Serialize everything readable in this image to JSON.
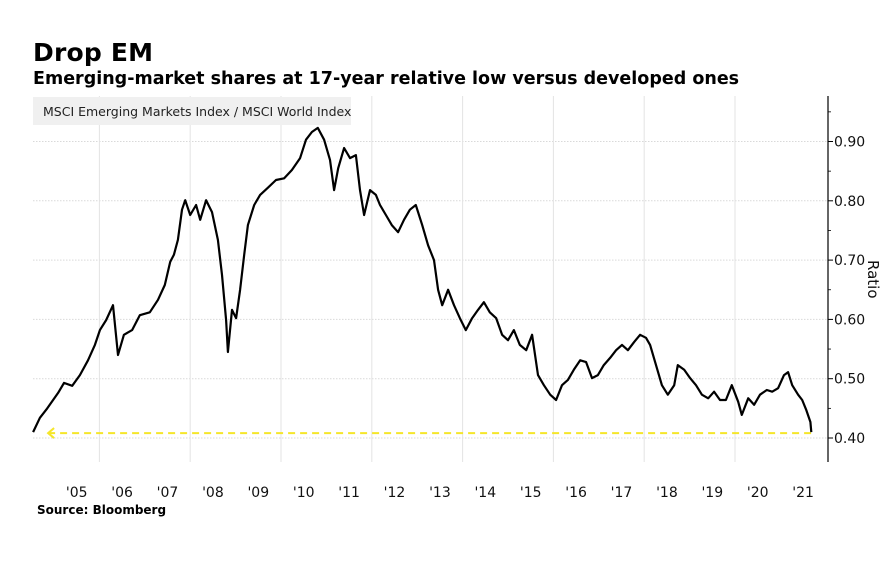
{
  "chart_data": {
    "type": "line",
    "title": "Drop EM",
    "subtitle": "Emerging-market shares at 17-year relative low versus developed ones",
    "source": "Source: Bloomberg",
    "xlabel": "",
    "ylabel": "Ratio",
    "ylim": [
      0.36,
      0.98
    ],
    "xlim": [
      2004.55,
      2021.95
    ],
    "grid": true,
    "legend_position": "top-left",
    "y_ticks": [
      0.4,
      0.5,
      0.6,
      0.7,
      0.8,
      0.9
    ],
    "y_tick_labels": [
      "0.40",
      "0.50",
      "0.60",
      "0.70",
      "0.80",
      "0.90"
    ],
    "x_ticks": [
      2005.5,
      2006.5,
      2007.5,
      2008.5,
      2009.5,
      2010.5,
      2011.5,
      2012.5,
      2013.5,
      2014.5,
      2015.5,
      2016.5,
      2017.5,
      2018.5,
      2019.5,
      2020.5,
      2021.5
    ],
    "x_tick_labels": [
      "'05",
      "'06",
      "'07",
      "'08",
      "'09",
      "'10",
      "'11",
      "'12",
      "'13",
      "'14",
      "'15",
      "'16",
      "'17",
      "'18",
      "'19",
      "'20",
      "'21"
    ],
    "x_gridlines": [
      2006,
      2008,
      2010,
      2012,
      2014,
      2016,
      2018,
      2020
    ],
    "series": [
      {
        "name": "MSCI Emerging Markets Index / MSCI World Index",
        "color": "#000000",
        "x": [
          2004.54,
          2004.69,
          2004.85,
          2005.09,
          2005.22,
          2005.4,
          2005.57,
          2005.75,
          2005.9,
          2006.01,
          2006.15,
          2006.3,
          2006.41,
          2006.54,
          2006.72,
          2006.89,
          2007.11,
          2007.29,
          2007.44,
          2007.56,
          2007.64,
          2007.73,
          2007.82,
          2007.89,
          2008.0,
          2008.13,
          2008.22,
          2008.35,
          2008.48,
          2008.61,
          2008.7,
          2008.79,
          2008.83,
          2008.92,
          2009.01,
          2009.1,
          2009.19,
          2009.27,
          2009.41,
          2009.54,
          2009.71,
          2009.89,
          2010.07,
          2010.24,
          2010.42,
          2010.55,
          2010.68,
          2010.81,
          2010.95,
          2011.08,
          2011.17,
          2011.26,
          2011.39,
          2011.52,
          2011.65,
          2011.74,
          2011.83,
          2011.96,
          2012.09,
          2012.18,
          2012.31,
          2012.44,
          2012.58,
          2012.71,
          2012.84,
          2012.97,
          2013.11,
          2013.24,
          2013.37,
          2013.46,
          2013.55,
          2013.68,
          2013.81,
          2013.94,
          2014.07,
          2014.21,
          2014.34,
          2014.47,
          2014.6,
          2014.74,
          2014.87,
          2015.0,
          2015.13,
          2015.26,
          2015.4,
          2015.53,
          2015.66,
          2015.79,
          2015.93,
          2016.06,
          2016.19,
          2016.32,
          2016.45,
          2016.59,
          2016.72,
          2016.85,
          2016.98,
          2017.11,
          2017.25,
          2017.38,
          2017.51,
          2017.64,
          2017.78,
          2017.91,
          2018.04,
          2018.13,
          2018.26,
          2018.39,
          2018.52,
          2018.66,
          2018.74,
          2018.88,
          2019.01,
          2019.14,
          2019.27,
          2019.41,
          2019.54,
          2019.67,
          2019.8,
          2019.93,
          2020.07,
          2020.15,
          2020.29,
          2020.42,
          2020.55,
          2020.7,
          2020.82,
          2020.95,
          2021.08,
          2021.17,
          2021.26,
          2021.39,
          2021.48,
          2021.57,
          2021.66,
          2021.68
        ],
        "values": [
          0.41,
          0.434,
          0.45,
          0.476,
          0.493,
          0.488,
          0.506,
          0.531,
          0.557,
          0.582,
          0.599,
          0.624,
          0.54,
          0.574,
          0.582,
          0.607,
          0.612,
          0.633,
          0.658,
          0.697,
          0.709,
          0.734,
          0.785,
          0.801,
          0.776,
          0.793,
          0.768,
          0.801,
          0.781,
          0.734,
          0.675,
          0.599,
          0.545,
          0.616,
          0.602,
          0.65,
          0.709,
          0.759,
          0.793,
          0.81,
          0.822,
          0.835,
          0.838,
          0.852,
          0.872,
          0.903,
          0.916,
          0.923,
          0.903,
          0.869,
          0.818,
          0.855,
          0.889,
          0.872,
          0.877,
          0.818,
          0.776,
          0.818,
          0.81,
          0.793,
          0.776,
          0.759,
          0.747,
          0.768,
          0.785,
          0.793,
          0.759,
          0.725,
          0.7,
          0.65,
          0.624,
          0.65,
          0.624,
          0.602,
          0.582,
          0.602,
          0.616,
          0.629,
          0.612,
          0.602,
          0.574,
          0.565,
          0.582,
          0.557,
          0.548,
          0.574,
          0.506,
          0.489,
          0.473,
          0.464,
          0.489,
          0.498,
          0.515,
          0.531,
          0.528,
          0.501,
          0.506,
          0.523,
          0.535,
          0.548,
          0.557,
          0.548,
          0.562,
          0.574,
          0.569,
          0.557,
          0.523,
          0.489,
          0.473,
          0.489,
          0.523,
          0.515,
          0.501,
          0.489,
          0.473,
          0.467,
          0.478,
          0.464,
          0.464,
          0.489,
          0.461,
          0.439,
          0.467,
          0.456,
          0.473,
          0.481,
          0.478,
          0.484,
          0.506,
          0.511,
          0.489,
          0.473,
          0.464,
          0.447,
          0.427,
          0.41
        ]
      }
    ],
    "annotations": [
      {
        "type": "dashed-arrow-line",
        "direction": "left",
        "value": 0.41,
        "x_from": 2021.68,
        "x_to": 2004.87,
        "color": "#f5e62a"
      }
    ]
  }
}
